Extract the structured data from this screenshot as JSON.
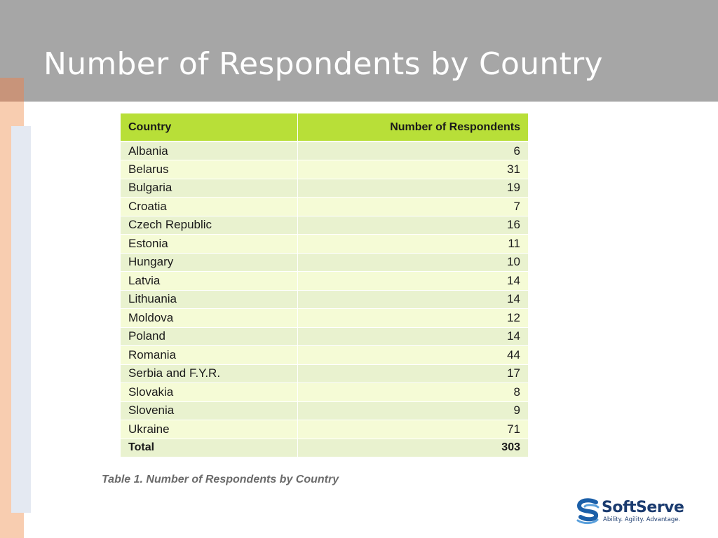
{
  "slide": {
    "title": "Number of Respondents by Country"
  },
  "table": {
    "headers": {
      "country": "Country",
      "respondents": "Number of Respondents"
    },
    "rows": [
      {
        "country": "Albania",
        "value": "6"
      },
      {
        "country": "Belarus",
        "value": "31"
      },
      {
        "country": "Bulgaria",
        "value": "19"
      },
      {
        "country": "Croatia",
        "value": "7"
      },
      {
        "country": "Czech Republic",
        "value": "16"
      },
      {
        "country": "Estonia",
        "value": "11"
      },
      {
        "country": "Hungary",
        "value": "10"
      },
      {
        "country": "Latvia",
        "value": "14"
      },
      {
        "country": "Lithuania",
        "value": "14"
      },
      {
        "country": "Moldova",
        "value": "12"
      },
      {
        "country": "Poland",
        "value": "14"
      },
      {
        "country": "Romania",
        "value": "44"
      },
      {
        "country": "Serbia and F.Y.R.",
        "value": "17"
      },
      {
        "country": "Slovakia",
        "value": "8"
      },
      {
        "country": "Slovenia",
        "value": "9"
      },
      {
        "country": "Ukraine",
        "value": "71"
      }
    ],
    "total": {
      "label": "Total",
      "value": "303"
    },
    "caption": "Table 1. Number of Respondents by Country"
  },
  "logo": {
    "name": "SoftServe",
    "tagline": "Ability. Agility. Advantage."
  },
  "colors": {
    "title_bar": "#a6a6a6",
    "header_green": "#b8df38",
    "row_light_a": "#e9f2cf",
    "row_light_b": "#f5fbd6",
    "accent_peach": "#f8cdb0",
    "logo_blue": "#1b3b6f"
  }
}
